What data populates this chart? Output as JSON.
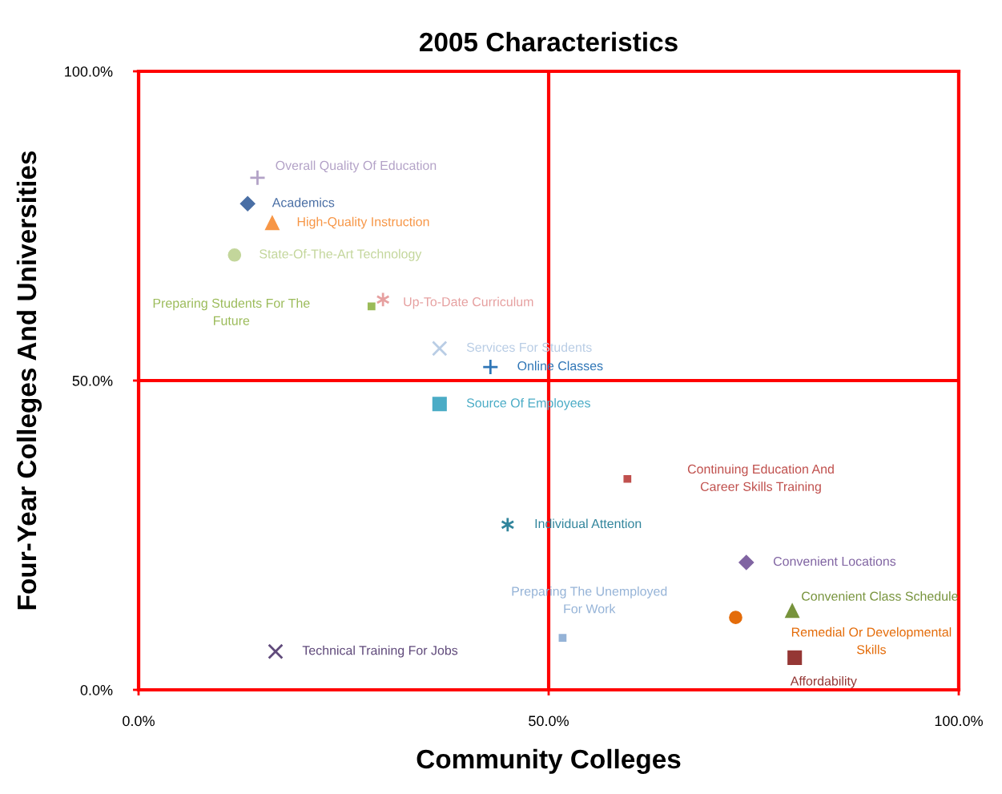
{
  "chart_data": {
    "type": "scatter",
    "title": "2005 Characteristics",
    "xlabel": "Community Colleges",
    "ylabel": "Four-Year Colleges And Universities",
    "xlim": [
      0,
      100
    ],
    "ylim": [
      0,
      100
    ],
    "xticks": [
      {
        "value": 0,
        "label": "0.0%"
      },
      {
        "value": 50,
        "label": "50.0%"
      },
      {
        "value": 100,
        "label": "100.0%"
      }
    ],
    "yticks": [
      {
        "value": 0,
        "label": "0.0%"
      },
      {
        "value": 50,
        "label": "50.0%"
      },
      {
        "value": 100,
        "label": "100.0%"
      }
    ],
    "grid": true,
    "legend": false,
    "series": [
      {
        "name": "Overall Quality Of Education",
        "color": "#b3a2c7",
        "marker": "plus",
        "x": [
          14.5
        ],
        "values": [
          82.8
        ]
      },
      {
        "name": "Academics",
        "color": "#4a6fa5",
        "marker": "diamond",
        "x": [
          13.3
        ],
        "values": [
          78.6
        ]
      },
      {
        "name": "High-Quality Instruction",
        "color": "#f79646",
        "marker": "triangle",
        "x": [
          16.3
        ],
        "values": [
          75.5
        ]
      },
      {
        "name": "State-Of-The-Art Technology",
        "color": "#c3d69b",
        "marker": "circle",
        "x": [
          11.7
        ],
        "values": [
          70.3
        ]
      },
      {
        "name": "Preparing Students For The\nFuture",
        "color": "#9bbb59",
        "marker": "square",
        "x": [
          28.4
        ],
        "values": [
          62.0
        ]
      },
      {
        "name": "Up-To-Date Curriculum",
        "color": "#e6a0a0",
        "marker": "cross",
        "x": [
          29.8
        ],
        "values": [
          63.1
        ]
      },
      {
        "name": "Services For Students",
        "color": "#b9cde5",
        "marker": "cross",
        "x": [
          36.7
        ],
        "values": [
          55.2
        ]
      },
      {
        "name": "Online Classes",
        "color": "#2e75b6",
        "marker": "plus",
        "x": [
          42.9
        ],
        "values": [
          52.2
        ]
      },
      {
        "name": "Source Of Employees",
        "color": "#4bacc6",
        "marker": "square",
        "x": [
          36.7
        ],
        "values": [
          46.2
        ]
      },
      {
        "name": "Continuing Education And\nCareer Skills Training",
        "color": "#c0504d",
        "marker": "square",
        "x": [
          59.6
        ],
        "values": [
          34.1
        ]
      },
      {
        "name": "Individual Attention",
        "color": "#31859c",
        "marker": "cross",
        "x": [
          45.0
        ],
        "values": [
          26.7
        ]
      },
      {
        "name": "Convenient Locations",
        "color": "#8064a2",
        "marker": "diamond",
        "x": [
          74.1
        ],
        "values": [
          20.6
        ]
      },
      {
        "name": "Convenient Class Schedule",
        "color": "#77933c",
        "marker": "triangle",
        "x": [
          79.7
        ],
        "values": [
          12.8
        ]
      },
      {
        "name": "Remedial Or Developmental\nSkills",
        "color": "#e46c0a",
        "marker": "circle",
        "x": [
          72.8
        ],
        "values": [
          11.7
        ]
      },
      {
        "name": "Preparing The Unemployed\nFor Work",
        "color": "#95b3d7",
        "marker": "square",
        "x": [
          51.7
        ],
        "values": [
          8.4
        ]
      },
      {
        "name": "Technical Training For Jobs",
        "color": "#604a7b",
        "marker": "cross",
        "x": [
          16.7
        ],
        "values": [
          6.2
        ]
      },
      {
        "name": "Affordability",
        "color": "#953735",
        "marker": "square",
        "x": [
          80.0
        ],
        "values": [
          5.2
        ]
      }
    ]
  }
}
